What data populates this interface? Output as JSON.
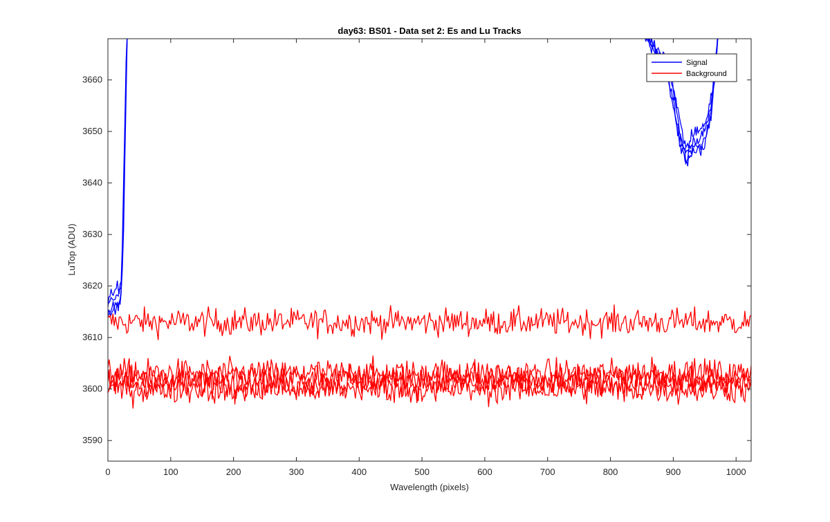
{
  "chart_data": {
    "type": "line",
    "title": "day63: BS01 - Data set 2: Es and Lu Tracks",
    "xlabel": "Wavelength (pixels)",
    "ylabel": "LuTop (ADU)",
    "xlim": [
      0,
      1024
    ],
    "ylim": [
      3586,
      3668
    ],
    "xticks": [
      0,
      100,
      200,
      300,
      400,
      500,
      600,
      700,
      800,
      900,
      1000
    ],
    "yticks": [
      3590,
      3600,
      3610,
      3620,
      3630,
      3640,
      3650,
      3660
    ],
    "grid": false,
    "legend": {
      "placement": "top-right",
      "entries": [
        "Signal",
        "Background"
      ]
    },
    "colors": {
      "Signal": "#0000ff",
      "Background": "#ff0000",
      "axes": "#262626"
    },
    "series": [
      {
        "name": "Signal",
        "color": "#0000ff",
        "lines": [
          {
            "x": [
              0,
              5,
              10,
              15,
              18,
              21,
              23,
              25,
              27,
              29,
              31
            ],
            "y": [
              3617,
              3619,
              3618,
              3620,
              3619,
              3621,
              3628,
              3640,
              3652,
              3664,
              3670
            ]
          },
          {
            "x": [
              0,
              5,
              10,
              15,
              18,
              21,
              23,
              25,
              27,
              29,
              31
            ],
            "y": [
              3616,
              3618,
              3617,
              3618,
              3618,
              3620,
              3626,
              3637,
              3650,
              3662,
              3670
            ]
          },
          {
            "x": [
              0,
              5,
              10,
              15,
              18,
              21,
              23,
              25,
              27,
              29,
              31
            ],
            "y": [
              3615,
              3616,
              3616,
              3617,
              3617,
              3619,
              3624,
              3634,
              3647,
              3660,
              3670
            ]
          },
          {
            "x": [
              0,
              5,
              10,
              15,
              18,
              21,
              23,
              25,
              27,
              29,
              31
            ],
            "y": [
              3614,
              3615,
              3615,
              3616,
              3616,
              3618,
              3622,
              3631,
              3644,
              3657,
              3670
            ]
          },
          {
            "x": [
              850,
              870,
              890,
              900,
              910,
              920,
              935,
              950,
              960,
              967,
              972
            ],
            "y": [
              3670,
              3667,
              3664,
              3659,
              3652,
              3647,
              3650,
              3651,
              3656,
              3664,
              3670
            ]
          },
          {
            "x": [
              850,
              870,
              890,
              900,
              910,
              920,
              935,
              950,
              960,
              967,
              972
            ],
            "y": [
              3670,
              3666,
              3663,
              3658,
              3650,
              3646,
              3648,
              3650,
              3655,
              3663,
              3670
            ]
          },
          {
            "x": [
              850,
              870,
              890,
              900,
              910,
              920,
              935,
              950,
              960,
              967,
              972
            ],
            "y": [
              3670,
              3666,
              3662,
              3656,
              3649,
              3645,
              3647,
              3648,
              3654,
              3662,
              3670
            ]
          },
          {
            "x": [
              850,
              870,
              890,
              900,
              910,
              920,
              935,
              950,
              960,
              967,
              972
            ],
            "y": [
              3670,
              3665,
              3661,
              3655,
              3648,
              3644,
              3646,
              3647,
              3653,
              3661,
              3670
            ]
          }
        ]
      },
      {
        "name": "Background",
        "color": "#ff0000",
        "bands": [
          {
            "mean": 3613.0,
            "spread": 1.9
          },
          {
            "mean": 3603.0,
            "spread": 2.0
          },
          {
            "mean": 3602.2,
            "spread": 2.0
          },
          {
            "mean": 3601.0,
            "spread": 2.0
          },
          {
            "mean": 3600.0,
            "spread": 2.0
          }
        ]
      }
    ]
  }
}
